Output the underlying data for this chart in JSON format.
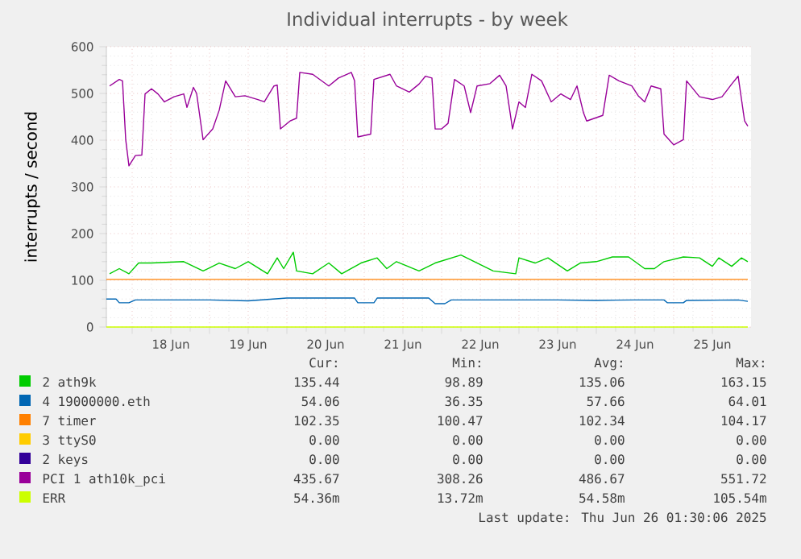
{
  "chart_data": {
    "type": "line",
    "title": "Individual interrupts - by week",
    "ylabel": "interrupts / second",
    "xlim": [
      "2025-06-17T16:00",
      "2025-06-26T00:00"
    ],
    "ylim": [
      0,
      600
    ],
    "yticks": [
      0,
      100,
      200,
      300,
      400,
      500,
      600
    ],
    "xticks": [
      {
        "value": "2025-06-18T00:00",
        "label": null
      },
      {
        "value": "2025-06-18T12:00",
        "label": "18 Jun"
      },
      {
        "value": "2025-06-19T00:00",
        "label": null
      },
      {
        "value": "2025-06-19T12:00",
        "label": "19 Jun"
      },
      {
        "value": "2025-06-20T00:00",
        "label": null
      },
      {
        "value": "2025-06-20T12:00",
        "label": "20 Jun"
      },
      {
        "value": "2025-06-21T00:00",
        "label": null
      },
      {
        "value": "2025-06-21T12:00",
        "label": "21 Jun"
      },
      {
        "value": "2025-06-22T00:00",
        "label": null
      },
      {
        "value": "2025-06-22T12:00",
        "label": "22 Jun"
      },
      {
        "value": "2025-06-23T00:00",
        "label": null
      },
      {
        "value": "2025-06-23T12:00",
        "label": "23 Jun"
      },
      {
        "value": "2025-06-24T00:00",
        "label": null
      },
      {
        "value": "2025-06-24T12:00",
        "label": "24 Jun"
      },
      {
        "value": "2025-06-25T00:00",
        "label": null
      },
      {
        "value": "2025-06-25T12:00",
        "label": "25 Jun"
      }
    ],
    "grid": true,
    "legend": "bottom",
    "marker": "none",
    "line_style": "solid",
    "series": [
      {
        "name": "2 ath9k",
        "color": "#00cc00",
        "x": [
          "2025-06-17T17:00",
          "2025-06-17T20:00",
          "2025-06-17T23:00",
          "2025-06-18T02:00",
          "2025-06-18T06:00",
          "2025-06-18T16:00",
          "2025-06-18T22:00",
          "2025-06-19T03:00",
          "2025-06-19T08:00",
          "2025-06-19T12:00",
          "2025-06-19T18:00",
          "2025-06-19T21:00",
          "2025-06-19T23:00",
          "2025-06-20T02:00",
          "2025-06-20T03:00",
          "2025-06-20T08:00",
          "2025-06-20T13:00",
          "2025-06-20T17:00",
          "2025-06-20T23:00",
          "2025-06-21T04:00",
          "2025-06-21T07:00",
          "2025-06-21T10:00",
          "2025-06-21T17:00",
          "2025-06-21T22:00",
          "2025-06-22T06:00",
          "2025-06-22T11:00",
          "2025-06-22T16:00",
          "2025-06-22T23:00",
          "2025-06-23T00:00",
          "2025-06-23T05:00",
          "2025-06-23T09:00",
          "2025-06-23T15:00",
          "2025-06-23T19:00",
          "2025-06-24T00:00",
          "2025-06-24T05:00",
          "2025-06-24T10:00",
          "2025-06-24T15:00",
          "2025-06-24T18:00",
          "2025-06-24T21:00",
          "2025-06-25T03:00",
          "2025-06-25T08:00",
          "2025-06-25T12:00",
          "2025-06-25T14:00",
          "2025-06-25T18:00",
          "2025-06-25T21:00",
          "2025-06-25T23:00"
        ],
        "values": [
          114,
          125,
          114,
          137,
          137,
          140,
          120,
          137,
          125,
          140,
          114,
          148,
          125,
          160,
          120,
          114,
          137,
          114,
          137,
          148,
          125,
          140,
          120,
          137,
          154,
          137,
          120,
          114,
          148,
          137,
          148,
          120,
          137,
          140,
          150,
          150,
          125,
          125,
          140,
          150,
          148,
          130,
          148,
          130,
          148,
          140
        ]
      },
      {
        "name": "4 19000000.eth",
        "color": "#0066b3",
        "x": [
          "2025-06-17T16:00",
          "2025-06-17T19:00",
          "2025-06-17T20:00",
          "2025-06-17T23:00",
          "2025-06-18T01:00",
          "2025-06-18T12:00",
          "2025-06-19T00:00",
          "2025-06-19T12:00",
          "2025-06-20T00:00",
          "2025-06-20T12:00",
          "2025-06-20T21:00",
          "2025-06-20T22:00",
          "2025-06-21T03:00",
          "2025-06-21T04:00",
          "2025-06-21T20:00",
          "2025-06-21T22:00",
          "2025-06-22T01:00",
          "2025-06-22T03:00",
          "2025-06-22T18:00",
          "2025-06-23T00:00",
          "2025-06-23T12:00",
          "2025-06-24T00:00",
          "2025-06-24T12:00",
          "2025-06-24T21:00",
          "2025-06-24T22:00",
          "2025-06-25T03:00",
          "2025-06-25T04:00",
          "2025-06-25T20:00",
          "2025-06-25T23:00"
        ],
        "values": [
          60,
          60,
          52,
          52,
          58,
          58,
          58,
          56,
          62,
          62,
          62,
          52,
          52,
          62,
          62,
          50,
          50,
          58,
          58,
          58,
          58,
          57,
          58,
          58,
          52,
          52,
          57,
          58,
          55
        ]
      },
      {
        "name": "7 timer",
        "color": "#ff8000",
        "x": [
          "2025-06-17T16:00",
          "2025-06-25T23:00"
        ],
        "values": [
          102,
          102
        ]
      },
      {
        "name": "3 ttyS0",
        "color": "#ffcc00"
      },
      {
        "name": "2 keys",
        "color": "#330099"
      },
      {
        "name": "PCI 1 ath10k_pci",
        "color": "#990099",
        "x": [
          "2025-06-17T17:00",
          "2025-06-17T20:00",
          "2025-06-17T21:00",
          "2025-06-17T22:00",
          "2025-06-17T23:00",
          "2025-06-18T01:00",
          "2025-06-18T03:00",
          "2025-06-18T04:00",
          "2025-06-18T06:00",
          "2025-06-18T08:00",
          "2025-06-18T10:00",
          "2025-06-18T13:00",
          "2025-06-18T16:00",
          "2025-06-18T17:00",
          "2025-06-18T19:00",
          "2025-06-18T20:00",
          "2025-06-18T22:00",
          "2025-06-19T01:00",
          "2025-06-19T03:00",
          "2025-06-19T05:00",
          "2025-06-19T08:00",
          "2025-06-19T11:00",
          "2025-06-19T15:00",
          "2025-06-19T17:00",
          "2025-06-19T20:00",
          "2025-06-19T21:00",
          "2025-06-19T22:00",
          "2025-06-20T01:00",
          "2025-06-20T03:00",
          "2025-06-20T04:00",
          "2025-06-20T08:00",
          "2025-06-20T13:00",
          "2025-06-20T16:00",
          "2025-06-20T20:00",
          "2025-06-20T21:00",
          "2025-06-20T22:00",
          "2025-06-21T02:00",
          "2025-06-21T03:00",
          "2025-06-21T08:00",
          "2025-06-21T10:00",
          "2025-06-21T14:00",
          "2025-06-21T17:00",
          "2025-06-21T19:00",
          "2025-06-21T21:00",
          "2025-06-21T22:00",
          "2025-06-22T00:00",
          "2025-06-22T02:00",
          "2025-06-22T04:00",
          "2025-06-22T07:00",
          "2025-06-22T09:00",
          "2025-06-22T11:00",
          "2025-06-22T15:00",
          "2025-06-22T18:00",
          "2025-06-22T20:00",
          "2025-06-22T22:00",
          "2025-06-23T00:00",
          "2025-06-23T02:00",
          "2025-06-23T04:00",
          "2025-06-23T07:00",
          "2025-06-23T10:00",
          "2025-06-23T13:00",
          "2025-06-23T16:00",
          "2025-06-23T18:00",
          "2025-06-23T20:00",
          "2025-06-23T21:00",
          "2025-06-24T02:00",
          "2025-06-24T04:00",
          "2025-06-24T07:00",
          "2025-06-24T11:00",
          "2025-06-24T13:00",
          "2025-06-24T15:00",
          "2025-06-24T17:00",
          "2025-06-24T20:00",
          "2025-06-24T21:00",
          "2025-06-25T00:00",
          "2025-06-25T03:00",
          "2025-06-25T04:00",
          "2025-06-25T08:00",
          "2025-06-25T12:00",
          "2025-06-25T15:00",
          "2025-06-25T18:00",
          "2025-06-25T20:00",
          "2025-06-25T22:00",
          "2025-06-25T23:00"
        ],
        "values": [
          516,
          530,
          527,
          401,
          345,
          367,
          368,
          499,
          510,
          499,
          482,
          493,
          499,
          470,
          513,
          500,
          401,
          424,
          464,
          527,
          493,
          495,
          487,
          482,
          516,
          518,
          424,
          441,
          447,
          545,
          541,
          516,
          533,
          545,
          527,
          407,
          413,
          530,
          541,
          516,
          503,
          520,
          537,
          533,
          424,
          424,
          436,
          530,
          516,
          459,
          516,
          521,
          539,
          516,
          424,
          482,
          470,
          541,
          527,
          482,
          499,
          487,
          516,
          459,
          441,
          453,
          539,
          527,
          516,
          495,
          482,
          516,
          510,
          413,
          390,
          401,
          527,
          493,
          487,
          493,
          520,
          537,
          441,
          430
        ]
      },
      {
        "name": "ERR",
        "color": "#ccff00",
        "x": [
          "2025-06-17T16:00",
          "2025-06-25T23:00"
        ],
        "values": [
          0,
          0
        ]
      }
    ],
    "annotations": [
      "Cur:",
      "Min:",
      "Avg:",
      "Max:",
      "135.44",
      "98.89",
      "135.06",
      "163.15",
      "54.06",
      "36.35",
      "57.66",
      "64.01",
      "102.35",
      "100.47",
      "102.34",
      "104.17",
      "0.00",
      "0.00",
      "0.00",
      "0.00",
      "0.00",
      "0.00",
      "0.00",
      "0.00",
      "435.67",
      "308.26",
      "486.67",
      "551.72",
      "54.36m",
      "13.72m",
      "54.58m",
      "105.54m",
      "Last update: Thu Jun 26 01:30:06 2025"
    ]
  }
}
